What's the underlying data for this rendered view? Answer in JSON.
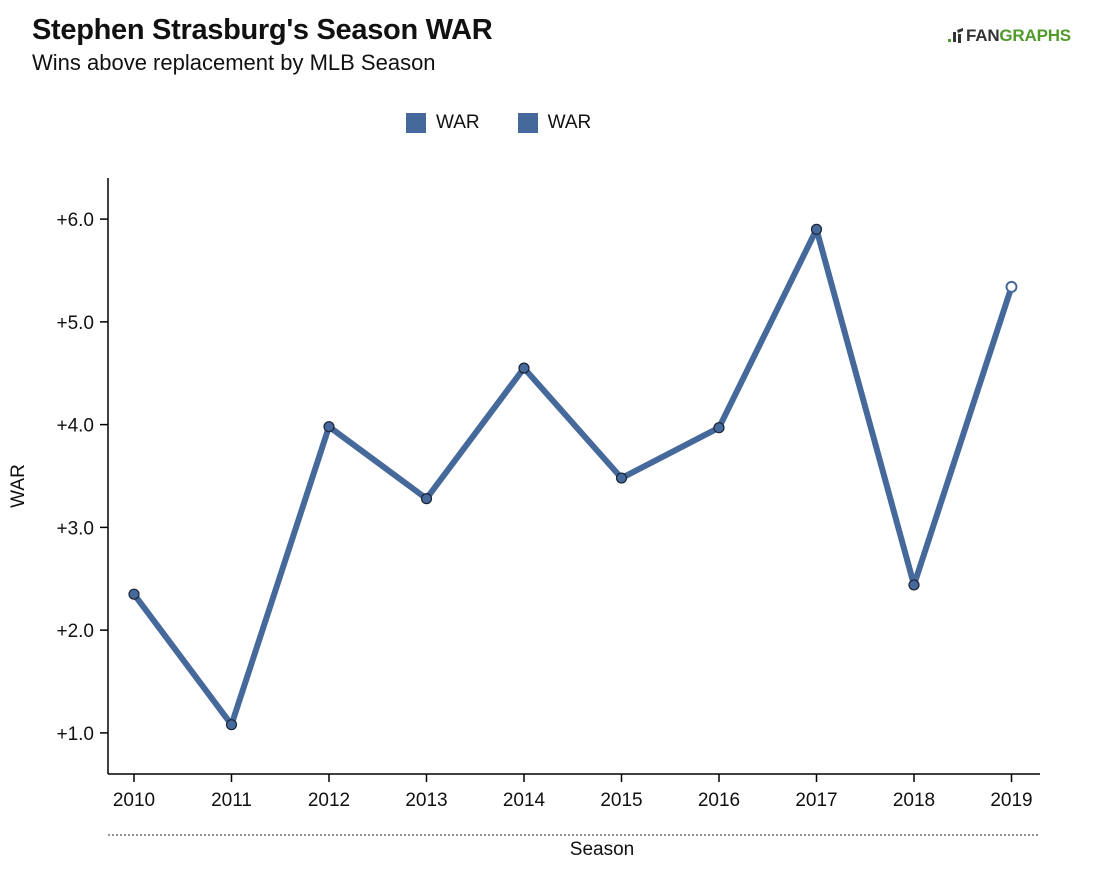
{
  "header": {
    "title": "Stephen Strasburg's Season WAR",
    "subtitle": "Wins above replacement by MLB Season"
  },
  "logo": {
    "part1": "FAN",
    "part2": "GRAPHS"
  },
  "legend": [
    {
      "label": "WAR",
      "color": "#46699b"
    },
    {
      "label": "WAR",
      "color": "#46699b"
    }
  ],
  "chart_data": {
    "type": "line",
    "xlabel": "Season",
    "ylabel": "WAR",
    "x": [
      "2010",
      "2011",
      "2012",
      "2013",
      "2014",
      "2015",
      "2016",
      "2017",
      "2018",
      "2019"
    ],
    "series": [
      {
        "name": "WAR",
        "values": [
          2.35,
          1.08,
          3.98,
          3.28,
          4.55,
          3.48,
          3.97,
          5.9,
          2.44,
          5.34
        ]
      }
    ],
    "last_point_open": true,
    "yticks": [
      1,
      2,
      3,
      4,
      5,
      6
    ],
    "ytick_labels": [
      "+1.0",
      "+2.0",
      "+3.0",
      "+4.0",
      "+5.0",
      "+6.0"
    ],
    "ylim": [
      0.6,
      6.4
    ],
    "grid": false,
    "legend_position": "top-center",
    "line_color": "#46699b"
  }
}
